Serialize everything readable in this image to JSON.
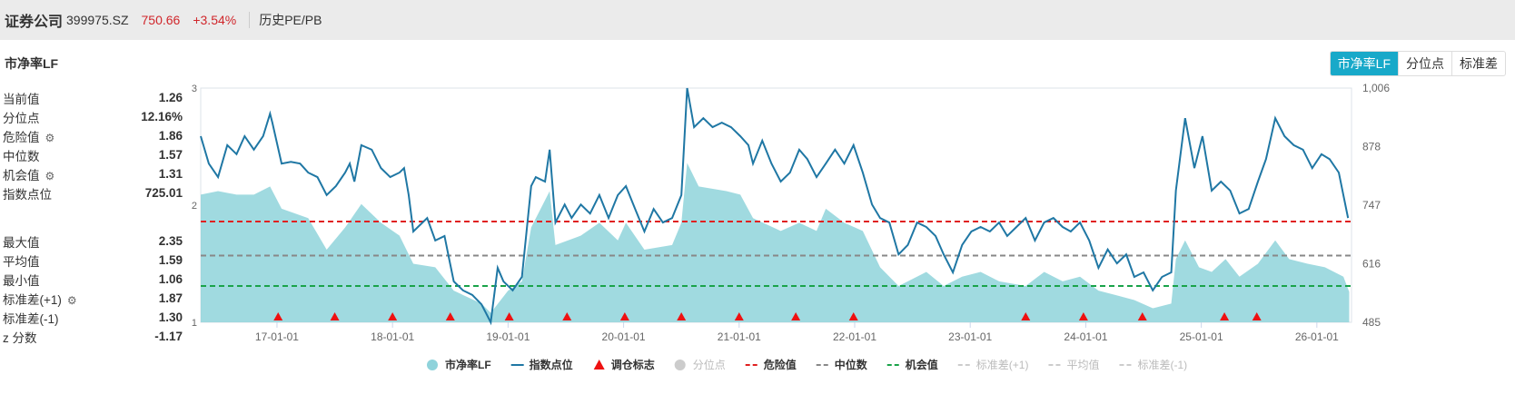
{
  "header": {
    "name": "证券公司",
    "code": "399975.SZ",
    "price": "750.66",
    "change": "+3.54%",
    "section": "历史PE/PB"
  },
  "subtitle": "市净率LF",
  "tabs": [
    {
      "label": "市净率LF",
      "active": true
    },
    {
      "label": "分位点",
      "active": false
    },
    {
      "label": "标准差",
      "active": false
    }
  ],
  "stats_top": [
    {
      "label": "当前值",
      "value": "1.26",
      "gear": false
    },
    {
      "label": "分位点",
      "value": "12.16%",
      "gear": false
    },
    {
      "label": "危险值",
      "value": "1.86",
      "gear": true
    },
    {
      "label": "中位数",
      "value": "1.57",
      "gear": false
    },
    {
      "label": "机会值",
      "value": "1.31",
      "gear": true
    },
    {
      "label": "指数点位",
      "value": "725.01",
      "gear": false
    }
  ],
  "stats_bottom": [
    {
      "label": "最大值",
      "value": "2.35",
      "gear": false
    },
    {
      "label": "平均值",
      "value": "1.59",
      "gear": false
    },
    {
      "label": "最小值",
      "value": "1.06",
      "gear": false
    },
    {
      "label": "标准差(+1)",
      "value": "1.87",
      "gear": true
    },
    {
      "label": "标准差(-1)",
      "value": "1.30",
      "gear": false
    },
    {
      "label": "z 分数",
      "value": "-1.17",
      "gear": false
    }
  ],
  "chart_data": {
    "type": "area+line",
    "x_range": [
      2016.34,
      2026.3
    ],
    "x_ticks": [
      {
        "x": 2017,
        "label": "17-01-01"
      },
      {
        "x": 2018,
        "label": "18-01-01"
      },
      {
        "x": 2019,
        "label": "19-01-01"
      },
      {
        "x": 2020,
        "label": "20-01-01"
      },
      {
        "x": 2021,
        "label": "21-01-01"
      },
      {
        "x": 2022,
        "label": "22-01-01"
      },
      {
        "x": 2023,
        "label": "23-01-01"
      },
      {
        "x": 2024,
        "label": "24-01-01"
      },
      {
        "x": 2025,
        "label": "25-01-01"
      },
      {
        "x": 2026,
        "label": "26-01-01"
      }
    ],
    "y_left": {
      "range": [
        1,
        3
      ],
      "ticks": [
        "1",
        "2",
        "3"
      ]
    },
    "y_right": {
      "range": [
        485,
        1006
      ],
      "ticks": [
        "485",
        "616",
        "747",
        "878",
        "1,006"
      ]
    },
    "colors": {
      "pb": "#8fd3db",
      "index": "#1f77a4",
      "marker": "#ee1111",
      "danger": "#e02020",
      "median": "#888888",
      "chance": "#1aa34a"
    },
    "ref_lines": [
      {
        "name": "危险值",
        "value": 1.86,
        "color": "#e02020"
      },
      {
        "name": "中位数",
        "value": 1.57,
        "color": "#888888"
      },
      {
        "name": "机会值",
        "value": 1.31,
        "color": "#1aa34a"
      }
    ],
    "pb_series": [
      [
        2016.34,
        2.09
      ],
      [
        2016.49,
        2.12
      ],
      [
        2016.65,
        2.09
      ],
      [
        2016.8,
        2.09
      ],
      [
        2016.94,
        2.16
      ],
      [
        2017.04,
        1.97
      ],
      [
        2017.27,
        1.89
      ],
      [
        2017.43,
        1.62
      ],
      [
        2017.59,
        1.81
      ],
      [
        2017.73,
        2.01
      ],
      [
        2017.9,
        1.85
      ],
      [
        2018.06,
        1.74
      ],
      [
        2018.18,
        1.5
      ],
      [
        2018.37,
        1.47
      ],
      [
        2018.53,
        1.27
      ],
      [
        2018.77,
        1.16
      ],
      [
        2018.85,
        1.08
      ],
      [
        2019.0,
        1.27
      ],
      [
        2019.12,
        1.35
      ],
      [
        2019.2,
        1.81
      ],
      [
        2019.36,
        2.12
      ],
      [
        2019.41,
        1.66
      ],
      [
        2019.63,
        1.74
      ],
      [
        2019.79,
        1.85
      ],
      [
        2019.95,
        1.7
      ],
      [
        2020.02,
        1.85
      ],
      [
        2020.18,
        1.62
      ],
      [
        2020.42,
        1.66
      ],
      [
        2020.5,
        1.85
      ],
      [
        2020.55,
        2.36
      ],
      [
        2020.65,
        2.16
      ],
      [
        2020.89,
        2.12
      ],
      [
        2021.01,
        2.09
      ],
      [
        2021.12,
        1.89
      ],
      [
        2021.36,
        1.78
      ],
      [
        2021.52,
        1.85
      ],
      [
        2021.67,
        1.78
      ],
      [
        2021.75,
        1.97
      ],
      [
        2021.91,
        1.85
      ],
      [
        2022.07,
        1.78
      ],
      [
        2022.22,
        1.47
      ],
      [
        2022.38,
        1.31
      ],
      [
        2022.46,
        1.35
      ],
      [
        2022.62,
        1.43
      ],
      [
        2022.77,
        1.31
      ],
      [
        2022.93,
        1.39
      ],
      [
        2023.09,
        1.43
      ],
      [
        2023.25,
        1.35
      ],
      [
        2023.48,
        1.31
      ],
      [
        2023.64,
        1.43
      ],
      [
        2023.8,
        1.35
      ],
      [
        2023.95,
        1.39
      ],
      [
        2024.11,
        1.27
      ],
      [
        2024.27,
        1.23
      ],
      [
        2024.42,
        1.19
      ],
      [
        2024.58,
        1.12
      ],
      [
        2024.74,
        1.16
      ],
      [
        2024.78,
        1.54
      ],
      [
        2024.86,
        1.7
      ],
      [
        2024.98,
        1.47
      ],
      [
        2025.09,
        1.43
      ],
      [
        2025.21,
        1.54
      ],
      [
        2025.33,
        1.39
      ],
      [
        2025.49,
        1.5
      ],
      [
        2025.64,
        1.7
      ],
      [
        2025.76,
        1.54
      ],
      [
        2025.92,
        1.5
      ],
      [
        2026.07,
        1.47
      ],
      [
        2026.23,
        1.39
      ],
      [
        2026.28,
        1.26
      ]
    ],
    "index_series": [
      [
        2016.34,
        899
      ],
      [
        2016.41,
        838
      ],
      [
        2016.49,
        808
      ],
      [
        2016.57,
        879
      ],
      [
        2016.65,
        859
      ],
      [
        2016.72,
        899
      ],
      [
        2016.8,
        869
      ],
      [
        2016.88,
        899
      ],
      [
        2016.94,
        949
      ],
      [
        2016.96,
        929
      ],
      [
        2017.04,
        838
      ],
      [
        2017.12,
        842
      ],
      [
        2017.2,
        838
      ],
      [
        2017.27,
        818
      ],
      [
        2017.35,
        808
      ],
      [
        2017.43,
        768
      ],
      [
        2017.51,
        788
      ],
      [
        2017.59,
        818
      ],
      [
        2017.63,
        838
      ],
      [
        2017.67,
        798
      ],
      [
        2017.73,
        879
      ],
      [
        2017.82,
        869
      ],
      [
        2017.9,
        828
      ],
      [
        2017.98,
        808
      ],
      [
        2018.06,
        818
      ],
      [
        2018.1,
        828
      ],
      [
        2018.14,
        768
      ],
      [
        2018.18,
        687
      ],
      [
        2018.22,
        697
      ],
      [
        2018.3,
        717
      ],
      [
        2018.37,
        667
      ],
      [
        2018.45,
        677
      ],
      [
        2018.49,
        626
      ],
      [
        2018.53,
        576
      ],
      [
        2018.61,
        556
      ],
      [
        2018.69,
        546
      ],
      [
        2018.77,
        525
      ],
      [
        2018.85,
        485
      ],
      [
        2018.91,
        606
      ],
      [
        2018.96,
        576
      ],
      [
        2019.04,
        556
      ],
      [
        2019.12,
        586
      ],
      [
        2019.2,
        788
      ],
      [
        2019.24,
        808
      ],
      [
        2019.32,
        798
      ],
      [
        2019.36,
        869
      ],
      [
        2019.41,
        707
      ],
      [
        2019.49,
        747
      ],
      [
        2019.55,
        717
      ],
      [
        2019.63,
        747
      ],
      [
        2019.71,
        727
      ],
      [
        2019.79,
        768
      ],
      [
        2019.87,
        717
      ],
      [
        2019.95,
        768
      ],
      [
        2020.02,
        788
      ],
      [
        2020.1,
        737
      ],
      [
        2020.18,
        687
      ],
      [
        2020.26,
        737
      ],
      [
        2020.34,
        707
      ],
      [
        2020.42,
        717
      ],
      [
        2020.5,
        768
      ],
      [
        2020.55,
        1006
      ],
      [
        2020.61,
        919
      ],
      [
        2020.69,
        939
      ],
      [
        2020.77,
        919
      ],
      [
        2020.85,
        929
      ],
      [
        2020.93,
        919
      ],
      [
        2021.01,
        899
      ],
      [
        2021.08,
        879
      ],
      [
        2021.12,
        838
      ],
      [
        2021.2,
        889
      ],
      [
        2021.28,
        838
      ],
      [
        2021.36,
        798
      ],
      [
        2021.44,
        818
      ],
      [
        2021.52,
        869
      ],
      [
        2021.59,
        848
      ],
      [
        2021.67,
        808
      ],
      [
        2021.75,
        838
      ],
      [
        2021.83,
        869
      ],
      [
        2021.91,
        838
      ],
      [
        2021.99,
        879
      ],
      [
        2022.07,
        818
      ],
      [
        2022.15,
        747
      ],
      [
        2022.22,
        717
      ],
      [
        2022.3,
        707
      ],
      [
        2022.38,
        636
      ],
      [
        2022.46,
        657
      ],
      [
        2022.54,
        707
      ],
      [
        2022.62,
        697
      ],
      [
        2022.7,
        677
      ],
      [
        2022.77,
        636
      ],
      [
        2022.85,
        596
      ],
      [
        2022.93,
        657
      ],
      [
        2023.01,
        687
      ],
      [
        2023.09,
        697
      ],
      [
        2023.17,
        687
      ],
      [
        2023.25,
        707
      ],
      [
        2023.32,
        677
      ],
      [
        2023.4,
        697
      ],
      [
        2023.48,
        717
      ],
      [
        2023.56,
        667
      ],
      [
        2023.64,
        707
      ],
      [
        2023.72,
        717
      ],
      [
        2023.8,
        697
      ],
      [
        2023.87,
        687
      ],
      [
        2023.95,
        707
      ],
      [
        2024.03,
        667
      ],
      [
        2024.11,
        606
      ],
      [
        2024.19,
        647
      ],
      [
        2024.27,
        616
      ],
      [
        2024.35,
        636
      ],
      [
        2024.42,
        586
      ],
      [
        2024.5,
        596
      ],
      [
        2024.58,
        556
      ],
      [
        2024.66,
        586
      ],
      [
        2024.74,
        596
      ],
      [
        2024.78,
        778
      ],
      [
        2024.86,
        939
      ],
      [
        2024.94,
        828
      ],
      [
        2025.01,
        899
      ],
      [
        2025.09,
        778
      ],
      [
        2025.17,
        798
      ],
      [
        2025.25,
        778
      ],
      [
        2025.33,
        727
      ],
      [
        2025.41,
        737
      ],
      [
        2025.49,
        798
      ],
      [
        2025.56,
        848
      ],
      [
        2025.64,
        939
      ],
      [
        2025.72,
        899
      ],
      [
        2025.8,
        879
      ],
      [
        2025.88,
        869
      ],
      [
        2025.96,
        828
      ],
      [
        2026.04,
        859
      ],
      [
        2026.11,
        848
      ],
      [
        2026.19,
        818
      ],
      [
        2026.27,
        717
      ]
    ],
    "rebalance_markers": [
      2017.01,
      2017.5,
      2018.0,
      2018.5,
      2019.01,
      2019.51,
      2020.01,
      2020.5,
      2021.0,
      2021.49,
      2021.99,
      2023.48,
      2023.98,
      2024.49,
      2025.2,
      2025.48
    ],
    "legend": [
      {
        "label": "市净率LF",
        "kind": "circle",
        "color": "#8fd3db",
        "enabled": true
      },
      {
        "label": "指数点位",
        "kind": "line",
        "color": "#1f77a4",
        "enabled": true
      },
      {
        "label": "调仓标志",
        "kind": "triangle",
        "color": "#ee1111",
        "enabled": true
      },
      {
        "label": "分位点",
        "kind": "circle",
        "color": "#cccccc",
        "enabled": false
      },
      {
        "label": "危险值",
        "kind": "dash",
        "color": "#e02020",
        "enabled": true
      },
      {
        "label": "中位数",
        "kind": "dash",
        "color": "#888888",
        "enabled": true
      },
      {
        "label": "机会值",
        "kind": "dash",
        "color": "#1aa34a",
        "enabled": true
      },
      {
        "label": "标准差(+1)",
        "kind": "dash",
        "color": "#cccccc",
        "enabled": false
      },
      {
        "label": "平均值",
        "kind": "dash",
        "color": "#cccccc",
        "enabled": false
      },
      {
        "label": "标准差(-1)",
        "kind": "dash",
        "color": "#cccccc",
        "enabled": false
      }
    ],
    "legend_position": "bottom"
  }
}
